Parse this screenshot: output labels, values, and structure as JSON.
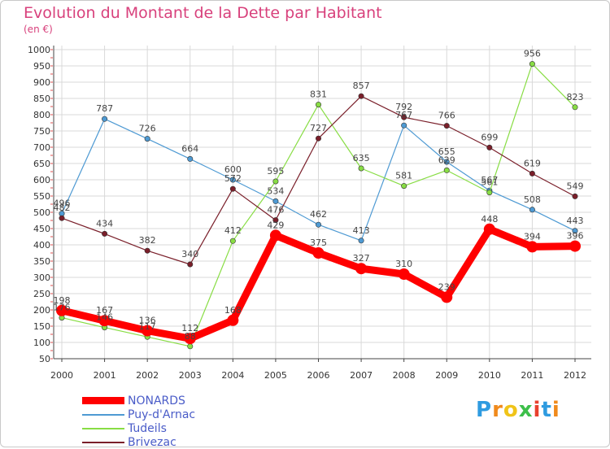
{
  "title": "Evolution du Montant de la Dette par Habitant",
  "subtitle": "(en €)",
  "logo": "Proxiti",
  "colors": {
    "title": "#d8417c",
    "grid": "#d9d9d9",
    "axis": "#444444",
    "legend_text": "#4a5cc8"
  },
  "chart_data": {
    "type": "line",
    "title": "Evolution du Montant de la Dette par Habitant",
    "subtitle": "(en €)",
    "xlabel": "",
    "ylabel": "",
    "x": [
      "2000",
      "2001",
      "2002",
      "2003",
      "2004",
      "2005",
      "2006",
      "2007",
      "2008",
      "2009",
      "2010",
      "2011",
      "2012"
    ],
    "ylim": [
      50,
      1000
    ],
    "yticks": [
      50,
      100,
      150,
      200,
      250,
      300,
      350,
      400,
      450,
      500,
      550,
      600,
      650,
      700,
      750,
      800,
      850,
      900,
      950,
      1000
    ],
    "grid": true,
    "legend_position": "bottom-left",
    "series": [
      {
        "name": "NONARDS",
        "color": "#ff0000",
        "values": [
          198,
          167,
          136,
          112,
          168,
          429,
          375,
          327,
          310,
          239,
          448,
          394,
          396
        ],
        "labels": [
          "198",
          "167",
          "136",
          "112",
          "168",
          "429",
          "375",
          "327",
          "310",
          "239",
          "448",
          "394",
          "396"
        ]
      },
      {
        "name": "Puy-d'Arnac",
        "color": "#4e9ad3",
        "values": [
          496,
          787,
          726,
          664,
          600,
          534,
          462,
          413,
          767,
          655,
          567,
          508,
          443
        ],
        "labels": [
          "496",
          "787",
          "726",
          "664",
          "600",
          "534",
          "462",
          "413",
          "767",
          "655",
          "567",
          "508",
          "443"
        ]
      },
      {
        "name": "Tudeils",
        "color": "#88dd44",
        "values": [
          176,
          146,
          117,
          88,
          412,
          595,
          831,
          635,
          581,
          629,
          561,
          956,
          823
        ],
        "labels": [
          "176",
          "146",
          "117",
          "88",
          "412",
          "595",
          "831",
          "635",
          "581",
          "629",
          "561",
          "956",
          "823"
        ]
      },
      {
        "name": "Brivezac",
        "color": "#7a1f2a",
        "values": [
          482,
          434,
          382,
          340,
          572,
          476,
          727,
          857,
          792,
          766,
          699,
          619,
          549
        ],
        "labels": [
          "482",
          "434",
          "382",
          "340",
          "572",
          "476",
          "727",
          "857",
          "792",
          "766",
          "699",
          "619",
          "549"
        ]
      }
    ]
  }
}
